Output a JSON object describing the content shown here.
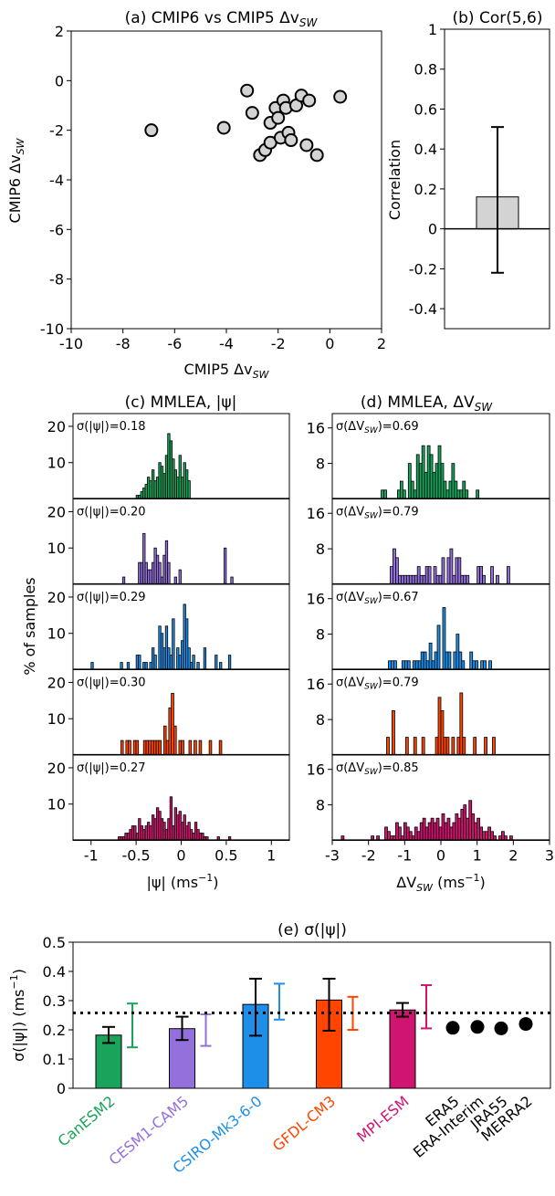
{
  "chart_data": [
    {
      "id": "a",
      "type": "scatter",
      "title": "(a) CMIP6 vs CMIP5 Δv",
      "title_sub": "SW",
      "xlabel": "CMIP5 Δv",
      "xlabel_sub": "SW",
      "ylabel": "CMIP6 Δv",
      "ylabel_sub": "SW",
      "xlim": [
        -10,
        2
      ],
      "ylim": [
        -10,
        2
      ],
      "xticks": [
        "-10",
        "-8",
        "-6",
        "-4",
        "-2",
        "0",
        "2"
      ],
      "yticks": [
        "-10",
        "-8",
        "-6",
        "-4",
        "-2",
        "0",
        "2"
      ],
      "marker_color": "#d3d3d3",
      "points": [
        [
          -6.9,
          -2.0
        ],
        [
          -4.1,
          -1.9
        ],
        [
          -3.2,
          -0.4
        ],
        [
          -3.0,
          -1.3
        ],
        [
          -2.7,
          -3.0
        ],
        [
          -2.5,
          -2.8
        ],
        [
          -2.3,
          -2.5
        ],
        [
          -2.3,
          -1.7
        ],
        [
          -2.1,
          -1.1
        ],
        [
          -2.0,
          -1.5
        ],
        [
          -1.9,
          -2.3
        ],
        [
          -1.8,
          -0.8
        ],
        [
          -1.7,
          -1.1
        ],
        [
          -1.6,
          -2.1
        ],
        [
          -1.5,
          -2.4
        ],
        [
          -1.3,
          -1.0
        ],
        [
          -1.1,
          -0.6
        ],
        [
          -0.9,
          -2.6
        ],
        [
          -0.8,
          -0.8
        ],
        [
          -0.5,
          -3.0
        ],
        [
          0.4,
          -0.65
        ]
      ]
    },
    {
      "id": "b",
      "type": "bar",
      "title": "(b) Cor(5,6)",
      "ylabel": "Correlation",
      "ylim": [
        -0.5,
        1.0
      ],
      "yticks": [
        "-0.4",
        "-0.2",
        "0",
        "0.2",
        "0.4",
        "0.6",
        "0.8",
        "1"
      ],
      "value": 0.16,
      "error_low": -0.22,
      "error_high": 0.51,
      "bar_color": "#d3d3d3"
    },
    {
      "id": "c",
      "type": "bar",
      "title": "(c) MMLEA, |ψ|",
      "xlabel": "|ψ| (ms",
      "xlabel_sup": "−1",
      "ylabel": "% of samples",
      "xlim": [
        -1.2,
        1.2
      ],
      "ylim": [
        0,
        22
      ],
      "yticks": [
        "10",
        "20"
      ],
      "xticks": [
        "-1",
        "-0.5",
        "0",
        "0.5",
        "1"
      ],
      "panels": [
        {
          "label": "σ(|ψ|)=0.18",
          "color": "#1aa35a",
          "bins_start": -0.5,
          "bin_width": 0.025,
          "values": [
            1,
            1,
            2,
            3,
            4,
            6,
            5,
            8,
            5,
            6,
            10,
            9,
            7,
            12,
            18,
            16,
            11,
            8,
            6,
            12,
            6,
            10,
            8,
            5
          ]
        },
        {
          "label": "σ(|ψ|)=0.20",
          "color": "#9370db",
          "bins_start": -0.65,
          "bin_width": 0.025,
          "values": [
            2,
            0,
            0,
            0,
            0,
            0,
            0,
            6,
            6,
            14,
            6,
            4,
            4,
            6,
            10,
            8,
            6,
            2,
            8,
            12,
            6,
            0,
            0,
            2,
            0,
            4,
            0,
            0,
            0,
            0,
            0,
            0,
            0,
            0,
            0,
            0,
            0,
            0,
            0,
            0,
            0,
            0,
            0,
            0,
            0,
            10,
            0,
            0,
            2
          ]
        },
        {
          "label": "σ(|ψ|)=0.29",
          "color": "#1e8fe8",
          "bins_start": -1.0,
          "bin_width": 0.025,
          "values": [
            2,
            0,
            0,
            0,
            0,
            0,
            0,
            0,
            0,
            0,
            0,
            0,
            0,
            2,
            0,
            0,
            2,
            0,
            0,
            0,
            4,
            4,
            0,
            2,
            2,
            0,
            2,
            6,
            4,
            0,
            12,
            10,
            6,
            12,
            6,
            4,
            14,
            0,
            6,
            4,
            8,
            18,
            14,
            6,
            2,
            4,
            0,
            2,
            0,
            0,
            6,
            0,
            0,
            0,
            0,
            4,
            0,
            2,
            0,
            0,
            0,
            4
          ]
        },
        {
          "label": "σ(|ψ|)=0.30",
          "color": "#ff4500",
          "bins_start": -0.67,
          "bin_width": 0.028,
          "values": [
            4,
            0,
            4,
            4,
            0,
            4,
            4,
            0,
            0,
            4,
            4,
            4,
            4,
            4,
            4,
            4,
            0,
            8,
            4,
            13,
            17,
            8,
            0,
            4,
            4,
            0,
            0,
            4,
            0,
            4,
            0,
            4,
            0,
            0,
            0,
            4,
            0,
            0,
            0,
            4
          ]
        },
        {
          "label": "σ(|ψ|)=0.27",
          "color": "#d01570",
          "bins_start": -0.7,
          "bin_width": 0.025,
          "values": [
            1,
            1,
            1,
            2,
            2,
            3,
            4,
            4,
            2,
            6,
            4,
            3,
            4,
            5,
            4,
            7,
            6,
            9,
            8,
            6,
            5,
            3,
            6,
            12,
            4,
            9,
            7,
            8,
            5,
            7,
            4,
            5,
            3,
            2,
            5,
            3,
            2,
            2,
            1,
            1,
            0,
            0,
            0,
            0,
            1,
            0,
            0,
            0,
            0,
            1
          ]
        }
      ]
    },
    {
      "id": "d",
      "type": "bar",
      "title": "(d) MMLEA, ΔV",
      "title_sub": "SW",
      "xlabel": "ΔV",
      "xlabel_sub": "SW",
      "xlabel_unit": " (ms",
      "xlabel_sup": "−1",
      "xlim": [
        -3,
        3
      ],
      "ylim": [
        0,
        18
      ],
      "yticks": [
        "8",
        "16"
      ],
      "xticks": [
        "-3",
        "-2",
        "-1",
        "0",
        "1",
        "2",
        "3"
      ],
      "panels": [
        {
          "label": "σ(ΔV",
          "label_sub": "SW",
          "label_tail": ")=0.69",
          "color": "#1aa35a",
          "bins_start": -1.65,
          "bin_width": 0.075,
          "values": [
            2,
            2,
            0,
            0,
            0,
            0,
            2,
            4,
            2,
            0,
            8,
            4,
            2,
            10,
            8,
            12,
            6,
            12,
            10,
            6,
            8,
            12,
            8,
            4,
            2,
            4,
            8,
            4,
            2,
            2,
            4,
            2,
            0,
            0,
            0,
            2
          ]
        },
        {
          "label": "σ(ΔV",
          "label_sub": "SW",
          "label_tail": ")=0.79",
          "color": "#9370db",
          "bins_start": -1.4,
          "bin_width": 0.075,
          "values": [
            4,
            8,
            6,
            2,
            2,
            2,
            2,
            2,
            2,
            2,
            4,
            2,
            2,
            4,
            4,
            0,
            4,
            2,
            2,
            6,
            0,
            6,
            8,
            2,
            6,
            6,
            2,
            2,
            2,
            0,
            0,
            0,
            4,
            4,
            2,
            0,
            0,
            4,
            0,
            2,
            0,
            0,
            0,
            4
          ]
        },
        {
          "label": "σ(ΔV",
          "label_sub": "SW",
          "label_tail": ")=0.67",
          "color": "#1e8fe8",
          "bins_start": -1.45,
          "bin_width": 0.075,
          "values": [
            2,
            2,
            2,
            0,
            0,
            2,
            2,
            2,
            0,
            2,
            2,
            2,
            4,
            4,
            2,
            6,
            2,
            4,
            10,
            0,
            14,
            4,
            4,
            0,
            4,
            8,
            4,
            2,
            0,
            0,
            4,
            2,
            2,
            0,
            2,
            2,
            0,
            2
          ]
        },
        {
          "label": "σ(ΔV",
          "label_sub": "SW",
          "label_tail": ")=0.79",
          "color": "#ff4500",
          "bins_start": -1.5,
          "bin_width": 0.075,
          "values": [
            4,
            0,
            10,
            0,
            0,
            0,
            0,
            4,
            0,
            0,
            4,
            0,
            0,
            4,
            0,
            0,
            0,
            0,
            4,
            13,
            10,
            4,
            4,
            0,
            4,
            0,
            4,
            14,
            4,
            0,
            0,
            0,
            4,
            0,
            0,
            0,
            4,
            0,
            0,
            4
          ]
        },
        {
          "label": "σ(ΔV",
          "label_sub": "SW",
          "label_tail": ")=0.85",
          "color": "#d01570",
          "bins_start": -2.75,
          "bin_width": 0.075,
          "values": [
            1,
            0,
            0,
            0,
            0,
            0,
            0,
            0,
            0,
            0,
            0,
            1,
            0,
            1,
            0,
            0,
            3,
            2,
            1,
            1,
            4,
            3,
            1,
            4,
            3,
            2,
            1,
            3,
            2,
            4,
            5,
            3,
            4,
            5,
            4,
            5,
            3,
            6,
            4,
            5,
            3,
            4,
            6,
            5,
            7,
            8,
            5,
            9,
            6,
            4,
            5,
            3,
            2,
            2,
            3,
            2,
            1,
            0,
            1,
            2,
            1,
            0,
            1
          ]
        }
      ]
    },
    {
      "id": "e",
      "type": "bar",
      "title": "(e) σ(|ψ|)",
      "ylabel": "σ(|ψ|) (ms",
      "ylabel_sup": "−1",
      "ylim": [
        0,
        0.5
      ],
      "yticks": [
        "0",
        "0.1",
        "0.2",
        "0.3",
        "0.4",
        "0.5"
      ],
      "reference_line": 0.258,
      "models": [
        {
          "name": "CanESM2",
          "color": "#1aa35a",
          "value": 0.182,
          "err_low": 0.155,
          "err_high": 0.21,
          "range_low": 0.14,
          "range_high": 0.29
        },
        {
          "name": "CESM1-CAM5",
          "color": "#9370db",
          "value": 0.204,
          "err_low": 0.165,
          "err_high": 0.245,
          "range_low": 0.145,
          "range_high": 0.253
        },
        {
          "name": "CSIRO-Mk3-6-0",
          "color": "#1e8fe8",
          "value": 0.287,
          "err_low": 0.18,
          "err_high": 0.375,
          "range_low": 0.235,
          "range_high": 0.358
        },
        {
          "name": "GFDL-CM3",
          "color": "#ff4500",
          "value": 0.302,
          "err_low": 0.197,
          "err_high": 0.375,
          "range_low": 0.2,
          "range_high": 0.313
        },
        {
          "name": "MPI-ESM",
          "color": "#d01570",
          "value": 0.268,
          "err_low": 0.245,
          "err_high": 0.292,
          "range_low": 0.205,
          "range_high": 0.353
        }
      ],
      "reanalyses": [
        {
          "name": "ERA5",
          "value": 0.207
        },
        {
          "name": "ERA-Interim",
          "value": 0.21
        },
        {
          "name": "JRA55",
          "value": 0.205
        },
        {
          "name": "MERRA2",
          "value": 0.22
        }
      ]
    }
  ]
}
